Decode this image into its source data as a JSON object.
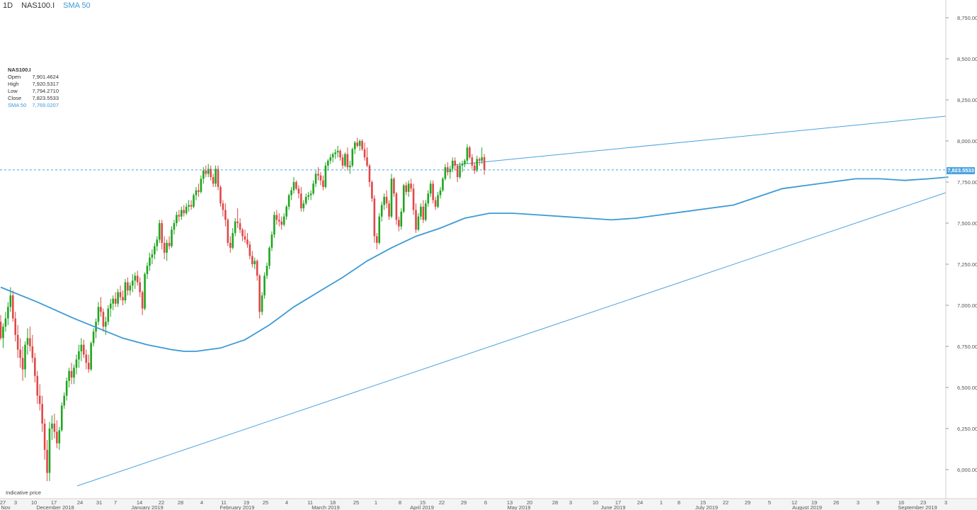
{
  "header": {
    "timeframe": "1D",
    "symbol": "NAS100.I",
    "indicator": "SMA 50"
  },
  "ohlc_box": {
    "title": "NAS100.I",
    "rows": [
      {
        "label": "Open",
        "value": "7,901.4624"
      },
      {
        "label": "High",
        "value": "7,920.5317"
      },
      {
        "label": "Low",
        "value": "7,794.2710"
      },
      {
        "label": "Close",
        "value": "7,823.5533"
      }
    ],
    "sma": {
      "label": "SMA 50",
      "value": "7,769.0207"
    }
  },
  "footer_note": "Indicative price",
  "last_price_label": "7,823.5533",
  "colors": {
    "up": "#1fa51f",
    "down": "#e04848",
    "sma": "#3c9ad6",
    "trend": "#4aa3df",
    "grid": "#e6e6e6"
  },
  "chart_data": {
    "type": "candlestick",
    "y_ticks": [
      "8,750.0000",
      "8,500.0000",
      "8,250.0000",
      "8,000.0000",
      "7,750.0000",
      "7,500.0000",
      "7,250.0000",
      "7,000.0000",
      "6,750.0000",
      "6,500.0000",
      "6,250.0000",
      "6,000.0000"
    ],
    "y_tick_values": [
      8750,
      8500,
      8250,
      8000,
      7750,
      7500,
      7250,
      7000,
      6750,
      6500,
      6250,
      6000
    ],
    "ylim": [
      5900,
      8850
    ],
    "x_day_ticks": [
      "27",
      "3",
      "10",
      "17",
      "24",
      "31",
      "7",
      "14",
      "22",
      "28",
      "4",
      "11",
      "19",
      "25",
      "4",
      "11",
      "18",
      "25",
      "1",
      "8",
      "15",
      "22",
      "29",
      "6",
      "13",
      "20",
      "28",
      "3",
      "10",
      "17",
      "24",
      "1",
      "8",
      "15",
      "22",
      "29",
      "5",
      "12",
      "19",
      "26",
      "3",
      "9",
      "16",
      "23",
      "3"
    ],
    "x_month_labels": [
      "Nov",
      "December 2018",
      "January 2019",
      "February 2019",
      "March 2019",
      "April 2019",
      "May 2019",
      "June 2019",
      "July 2019",
      "August 2019",
      "September 2019"
    ],
    "last_close": 7823.5533,
    "candles": [
      [
        6900,
        6940,
        6790,
        6800
      ],
      [
        6800,
        6890,
        6740,
        6870
      ],
      [
        6870,
        6960,
        6840,
        6920
      ],
      [
        6920,
        7020,
        6880,
        6990
      ],
      [
        6990,
        7110,
        6960,
        7060
      ],
      [
        7060,
        7090,
        6900,
        6920
      ],
      [
        6920,
        6960,
        6780,
        6820
      ],
      [
        6820,
        6880,
        6680,
        6730
      ],
      [
        6730,
        6800,
        6620,
        6680
      ],
      [
        6680,
        6750,
        6540,
        6610
      ],
      [
        6610,
        6780,
        6560,
        6760
      ],
      [
        6760,
        6860,
        6700,
        6800
      ],
      [
        6800,
        6870,
        6720,
        6750
      ],
      [
        6750,
        6820,
        6650,
        6680
      ],
      [
        6680,
        6710,
        6530,
        6570
      ],
      [
        6570,
        6600,
        6400,
        6450
      ],
      [
        6450,
        6520,
        6360,
        6400
      ],
      [
        6400,
        6450,
        6230,
        6280
      ],
      [
        6280,
        6310,
        6060,
        6120
      ],
      [
        6120,
        6180,
        5930,
        5980
      ],
      [
        5980,
        6290,
        5930,
        6250
      ],
      [
        6250,
        6330,
        6180,
        6280
      ],
      [
        6280,
        6340,
        6190,
        6230
      ],
      [
        6230,
        6300,
        6130,
        6160
      ],
      [
        6160,
        6260,
        6120,
        6240
      ],
      [
        6240,
        6410,
        6230,
        6390
      ],
      [
        6390,
        6470,
        6370,
        6450
      ],
      [
        6450,
        6560,
        6420,
        6540
      ],
      [
        6540,
        6620,
        6500,
        6600
      ],
      [
        6600,
        6650,
        6520,
        6560
      ],
      [
        6560,
        6640,
        6520,
        6620
      ],
      [
        6620,
        6700,
        6580,
        6670
      ],
      [
        6670,
        6760,
        6620,
        6720
      ],
      [
        6720,
        6800,
        6660,
        6760
      ],
      [
        6760,
        6790,
        6680,
        6700
      ],
      [
        6700,
        6730,
        6610,
        6650
      ],
      [
        6650,
        6700,
        6590,
        6610
      ],
      [
        6610,
        6780,
        6600,
        6770
      ],
      [
        6770,
        6860,
        6750,
        6840
      ],
      [
        6840,
        6920,
        6800,
        6900
      ],
      [
        6900,
        7020,
        6880,
        6990
      ],
      [
        6990,
        7050,
        6930,
        6960
      ],
      [
        6960,
        6980,
        6840,
        6870
      ],
      [
        6870,
        6930,
        6820,
        6900
      ],
      [
        6900,
        7000,
        6880,
        6980
      ],
      [
        6980,
        7040,
        6930,
        7010
      ],
      [
        7010,
        7060,
        6970,
        7040
      ],
      [
        7040,
        7080,
        6990,
        7010
      ],
      [
        7010,
        7100,
        6990,
        7080
      ],
      [
        7080,
        7120,
        7030,
        7050
      ],
      [
        7050,
        7090,
        7000,
        7030
      ],
      [
        7030,
        7160,
        7010,
        7140
      ],
      [
        7140,
        7170,
        7060,
        7090
      ],
      [
        7090,
        7140,
        7060,
        7120
      ],
      [
        7120,
        7190,
        7080,
        7150
      ],
      [
        7150,
        7200,
        7100,
        7180
      ],
      [
        7180,
        7210,
        7120,
        7140
      ],
      [
        7140,
        7170,
        7050,
        7080
      ],
      [
        7080,
        7090,
        6940,
        6980
      ],
      [
        6980,
        7200,
        6970,
        7190
      ],
      [
        7190,
        7260,
        7160,
        7240
      ],
      [
        7240,
        7320,
        7210,
        7290
      ],
      [
        7290,
        7340,
        7250,
        7310
      ],
      [
        7310,
        7380,
        7280,
        7360
      ],
      [
        7360,
        7420,
        7330,
        7400
      ],
      [
        7400,
        7520,
        7380,
        7500
      ],
      [
        7500,
        7520,
        7340,
        7380
      ],
      [
        7380,
        7420,
        7280,
        7320
      ],
      [
        7320,
        7400,
        7270,
        7380
      ],
      [
        7380,
        7420,
        7340,
        7360
      ],
      [
        7360,
        7480,
        7350,
        7460
      ],
      [
        7460,
        7520,
        7430,
        7500
      ],
      [
        7500,
        7570,
        7480,
        7550
      ],
      [
        7550,
        7580,
        7510,
        7540
      ],
      [
        7540,
        7600,
        7520,
        7580
      ],
      [
        7580,
        7610,
        7540,
        7560
      ],
      [
        7560,
        7620,
        7550,
        7600
      ],
      [
        7600,
        7640,
        7570,
        7610
      ],
      [
        7610,
        7640,
        7580,
        7600
      ],
      [
        7600,
        7680,
        7590,
        7670
      ],
      [
        7670,
        7720,
        7640,
        7700
      ],
      [
        7700,
        7740,
        7660,
        7690
      ],
      [
        7690,
        7790,
        7680,
        7770
      ],
      [
        7770,
        7840,
        7740,
        7820
      ],
      [
        7820,
        7850,
        7780,
        7800
      ],
      [
        7800,
        7860,
        7780,
        7830
      ],
      [
        7830,
        7850,
        7760,
        7780
      ],
      [
        7780,
        7800,
        7720,
        7740
      ],
      [
        7740,
        7850,
        7720,
        7830
      ],
      [
        7830,
        7850,
        7700,
        7720
      ],
      [
        7720,
        7730,
        7600,
        7620
      ],
      [
        7620,
        7640,
        7540,
        7580
      ],
      [
        7580,
        7620,
        7480,
        7520
      ],
      [
        7520,
        7530,
        7360,
        7380
      ],
      [
        7380,
        7420,
        7320,
        7350
      ],
      [
        7350,
        7470,
        7340,
        7440
      ],
      [
        7440,
        7530,
        7420,
        7510
      ],
      [
        7510,
        7590,
        7470,
        7500
      ],
      [
        7500,
        7530,
        7440,
        7460
      ],
      [
        7460,
        7470,
        7390,
        7420
      ],
      [
        7420,
        7460,
        7380,
        7400
      ],
      [
        7400,
        7440,
        7350,
        7370
      ],
      [
        7370,
        7390,
        7280,
        7300
      ],
      [
        7300,
        7330,
        7230,
        7250
      ],
      [
        7250,
        7290,
        7220,
        7270
      ],
      [
        7270,
        7280,
        7150,
        7180
      ],
      [
        7180,
        7190,
        6920,
        6960
      ],
      [
        6960,
        7080,
        6940,
        7060
      ],
      [
        7060,
        7200,
        7040,
        7180
      ],
      [
        7180,
        7260,
        7160,
        7240
      ],
      [
        7240,
        7360,
        7220,
        7350
      ],
      [
        7350,
        7450,
        7330,
        7430
      ],
      [
        7430,
        7570,
        7410,
        7550
      ],
      [
        7550,
        7580,
        7490,
        7520
      ],
      [
        7520,
        7560,
        7480,
        7510
      ],
      [
        7510,
        7540,
        7460,
        7490
      ],
      [
        7490,
        7560,
        7480,
        7540
      ],
      [
        7540,
        7610,
        7520,
        7600
      ],
      [
        7600,
        7680,
        7580,
        7670
      ],
      [
        7670,
        7720,
        7640,
        7700
      ],
      [
        7700,
        7780,
        7680,
        7750
      ],
      [
        7750,
        7760,
        7700,
        7710
      ],
      [
        7710,
        7730,
        7650,
        7680
      ],
      [
        7680,
        7720,
        7570,
        7590
      ],
      [
        7590,
        7640,
        7570,
        7620
      ],
      [
        7620,
        7680,
        7610,
        7660
      ],
      [
        7660,
        7690,
        7640,
        7670
      ],
      [
        7670,
        7700,
        7640,
        7680
      ],
      [
        7680,
        7760,
        7670,
        7740
      ],
      [
        7740,
        7820,
        7720,
        7800
      ],
      [
        7800,
        7840,
        7760,
        7790
      ],
      [
        7790,
        7810,
        7730,
        7760
      ],
      [
        7760,
        7790,
        7700,
        7720
      ],
      [
        7720,
        7870,
        7710,
        7850
      ],
      [
        7850,
        7890,
        7820,
        7880
      ],
      [
        7880,
        7920,
        7860,
        7900
      ],
      [
        7900,
        7930,
        7870,
        7920
      ],
      [
        7920,
        7950,
        7890,
        7930
      ],
      [
        7930,
        7970,
        7900,
        7940
      ],
      [
        7940,
        7950,
        7880,
        7900
      ],
      [
        7900,
        7920,
        7830,
        7850
      ],
      [
        7850,
        7930,
        7840,
        7920
      ],
      [
        7920,
        7960,
        7820,
        7840
      ],
      [
        7840,
        7880,
        7800,
        7850
      ],
      [
        7850,
        7960,
        7840,
        7950
      ],
      [
        7950,
        8000,
        7920,
        7990
      ],
      [
        7990,
        8020,
        7960,
        7970
      ],
      [
        7970,
        8010,
        7940,
        8000
      ],
      [
        8000,
        8010,
        7940,
        7950
      ],
      [
        7950,
        7990,
        7880,
        7900
      ],
      [
        7900,
        7960,
        7840,
        7850
      ],
      [
        7850,
        7860,
        7720,
        7750
      ],
      [
        7750,
        7760,
        7630,
        7650
      ],
      [
        7650,
        7670,
        7380,
        7420
      ],
      [
        7420,
        7440,
        7340,
        7380
      ],
      [
        7380,
        7560,
        7370,
        7540
      ],
      [
        7540,
        7630,
        7510,
        7610
      ],
      [
        7610,
        7680,
        7580,
        7660
      ],
      [
        7660,
        7700,
        7590,
        7620
      ],
      [
        7620,
        7640,
        7520,
        7540
      ],
      [
        7540,
        7800,
        7530,
        7770
      ],
      [
        7770,
        7780,
        7660,
        7680
      ],
      [
        7680,
        7690,
        7490,
        7520
      ],
      [
        7520,
        7540,
        7450,
        7480
      ],
      [
        7480,
        7590,
        7460,
        7570
      ],
      [
        7570,
        7740,
        7560,
        7730
      ],
      [
        7730,
        7750,
        7670,
        7690
      ],
      [
        7690,
        7760,
        7660,
        7740
      ],
      [
        7740,
        7770,
        7690,
        7710
      ],
      [
        7710,
        7740,
        7550,
        7580
      ],
      [
        7580,
        7620,
        7440,
        7460
      ],
      [
        7460,
        7560,
        7450,
        7540
      ],
      [
        7540,
        7620,
        7520,
        7600
      ],
      [
        7600,
        7640,
        7500,
        7520
      ],
      [
        7520,
        7640,
        7510,
        7620
      ],
      [
        7620,
        7700,
        7600,
        7680
      ],
      [
        7680,
        7760,
        7660,
        7740
      ],
      [
        7740,
        7760,
        7620,
        7640
      ],
      [
        7640,
        7660,
        7580,
        7600
      ],
      [
        7600,
        7690,
        7590,
        7670
      ],
      [
        7670,
        7720,
        7650,
        7700
      ],
      [
        7700,
        7780,
        7690,
        7770
      ],
      [
        7770,
        7860,
        7760,
        7840
      ],
      [
        7840,
        7870,
        7790,
        7810
      ],
      [
        7810,
        7850,
        7770,
        7830
      ],
      [
        7830,
        7900,
        7810,
        7880
      ],
      [
        7880,
        7900,
        7820,
        7850
      ],
      [
        7850,
        7860,
        7750,
        7780
      ],
      [
        7780,
        7870,
        7770,
        7850
      ],
      [
        7850,
        7880,
        7810,
        7860
      ],
      [
        7860,
        7890,
        7840,
        7880
      ],
      [
        7880,
        7980,
        7860,
        7960
      ],
      [
        7960,
        7970,
        7890,
        7900
      ],
      [
        7900,
        7920,
        7830,
        7850
      ],
      [
        7850,
        7870,
        7800,
        7820
      ],
      [
        7820,
        7910,
        7810,
        7890
      ],
      [
        7890,
        7900,
        7850,
        7880
      ],
      [
        7880,
        7960,
        7860,
        7900
      ],
      [
        7901.4624,
        7920.5317,
        7794.271,
        7823.5533
      ]
    ],
    "sma": [
      [
        0,
        7110
      ],
      [
        15,
        7020
      ],
      [
        30,
        6920
      ],
      [
        45,
        6830
      ],
      [
        50,
        6800
      ],
      [
        60,
        6760
      ],
      [
        70,
        6730
      ],
      [
        75,
        6720
      ],
      [
        80,
        6720
      ],
      [
        90,
        6740
      ],
      [
        100,
        6790
      ],
      [
        110,
        6880
      ],
      [
        120,
        6990
      ],
      [
        130,
        7080
      ],
      [
        140,
        7170
      ],
      [
        150,
        7270
      ],
      [
        160,
        7350
      ],
      [
        170,
        7420
      ],
      [
        180,
        7470
      ],
      [
        190,
        7530
      ],
      [
        200,
        7560
      ],
      [
        210,
        7560
      ],
      [
        220,
        7550
      ],
      [
        230,
        7540
      ],
      [
        240,
        7530
      ],
      [
        250,
        7520
      ],
      [
        260,
        7530
      ],
      [
        270,
        7550
      ],
      [
        280,
        7570
      ],
      [
        290,
        7590
      ],
      [
        300,
        7610
      ],
      [
        310,
        7660
      ],
      [
        320,
        7710
      ],
      [
        330,
        7730
      ],
      [
        340,
        7750
      ],
      [
        350,
        7770
      ],
      [
        360,
        7770
      ],
      [
        370,
        7760
      ],
      [
        380,
        7770
      ],
      [
        388,
        7780
      ]
    ],
    "trendlines": [
      {
        "from": [
          2.4,
          5920
        ],
        "to": [
          9.9,
          7680
        ]
      },
      {
        "from": [
          5.4,
          7840
        ],
        "to": [
          9.9,
          8150
        ]
      }
    ]
  }
}
